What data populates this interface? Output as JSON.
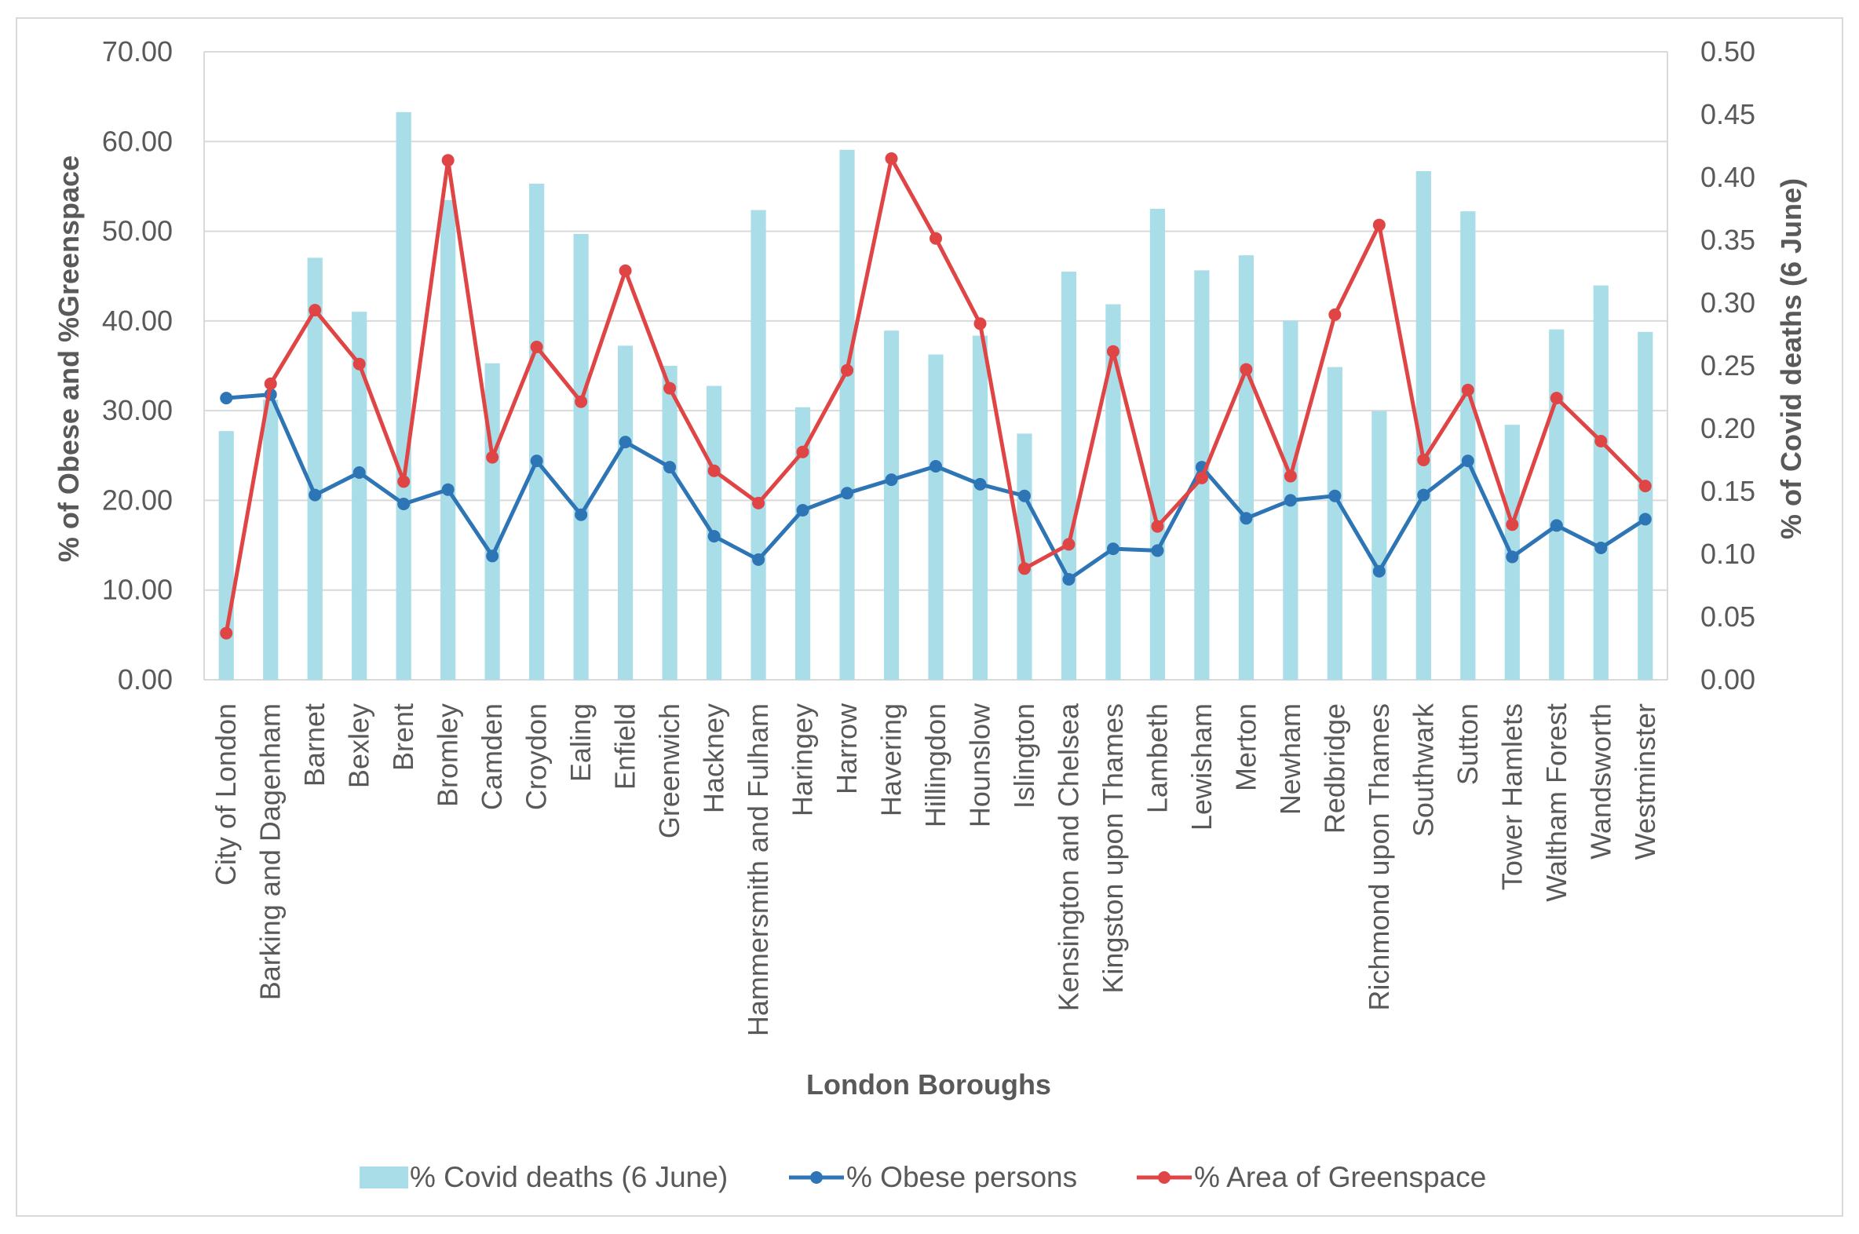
{
  "chart_data": {
    "type": "bar+line",
    "xlabel": "London Boroughs",
    "ylabel": "% of Obese and %Greenspace",
    "y2label": "% of Covid deaths (6 June)",
    "ylim": [
      0,
      70
    ],
    "y2lim": [
      0,
      0.5
    ],
    "grid": true,
    "legend_position": "bottom",
    "categories": [
      "City of London",
      "Barking and Dagenham",
      "Barnet",
      "Bexley",
      "Brent",
      "Bromley",
      "Camden",
      "Croydon",
      "Ealing",
      "Enfield",
      "Greenwich",
      "Hackney",
      "Hammersmith and Fulham",
      "Haringey",
      "Harrow",
      "Havering",
      "Hillingdon",
      "Hounslow",
      "Islington",
      "Kensington and Chelsea",
      "Kingston upon Thames",
      "Lambeth",
      "Lewisham",
      "Merton",
      "Newham",
      "Redbridge",
      "Richmond upon Thames",
      "Southwark",
      "Sutton",
      "Tower Hamlets",
      "Waltham Forest",
      "Wandsworth",
      "Westminster"
    ],
    "y_ticks": [
      "0.00",
      "10.00",
      "20.00",
      "30.00",
      "40.00",
      "50.00",
      "60.00",
      "70.00"
    ],
    "y2_ticks": [
      "0.00",
      "0.05",
      "0.10",
      "0.15",
      "0.20",
      "0.25",
      "0.30",
      "0.35",
      "0.40",
      "0.45",
      "0.50"
    ],
    "series": [
      {
        "name": "% Covid deaths (6 June)",
        "kind": "bar",
        "axis": "secondary",
        "color": "#a9dde8",
        "values": [
          0.198,
          0.223,
          0.336,
          0.293,
          0.452,
          0.382,
          0.252,
          0.395,
          0.355,
          0.266,
          0.25,
          0.234,
          0.374,
          0.217,
          0.422,
          0.278,
          0.259,
          0.274,
          0.196,
          0.325,
          0.299,
          0.375,
          0.326,
          0.338,
          0.286,
          0.249,
          0.214,
          0.405,
          0.373,
          0.203,
          0.279,
          0.314,
          0.277
        ]
      },
      {
        "name": "% Obese persons",
        "kind": "line",
        "axis": "primary",
        "color": "#2e75b6",
        "values": [
          31.4,
          31.8,
          20.6,
          23.1,
          19.6,
          21.2,
          13.8,
          24.4,
          18.4,
          26.5,
          23.7,
          16.0,
          13.4,
          18.9,
          20.8,
          22.3,
          23.8,
          21.8,
          20.5,
          11.2,
          14.6,
          14.4,
          23.7,
          18.0,
          20.0,
          20.5,
          12.1,
          20.6,
          24.4,
          13.7,
          17.2,
          14.7,
          17.9
        ]
      },
      {
        "name": "% Area of Greenspace",
        "kind": "line",
        "axis": "primary",
        "color": "#e04545",
        "values": [
          5.2,
          33.0,
          41.2,
          35.2,
          22.1,
          57.9,
          24.8,
          37.1,
          31.0,
          45.6,
          32.5,
          23.3,
          19.7,
          25.4,
          34.5,
          58.1,
          49.2,
          39.7,
          12.4,
          15.1,
          36.6,
          17.1,
          22.5,
          34.6,
          22.7,
          40.7,
          50.7,
          24.5,
          32.3,
          17.3,
          31.4,
          26.6,
          21.6
        ]
      }
    ]
  }
}
